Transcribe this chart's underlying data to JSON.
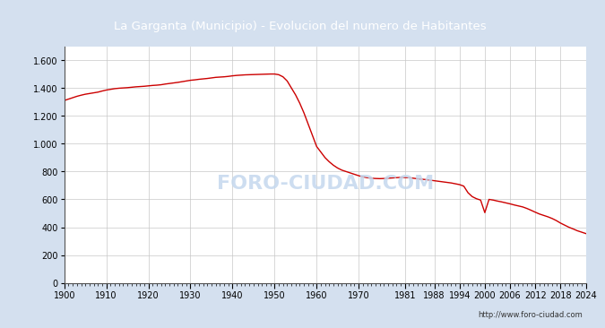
{
  "title": "La Garganta (Municipio) - Evolucion del numero de Habitantes",
  "title_bg_color": "#4179be",
  "title_text_color": "#ffffff",
  "plot_bg_color": "#ffffff",
  "outer_bg_color": "#d4e0ef",
  "line_color": "#cc0000",
  "watermark": "FORO-CIUDAD.COM",
  "url": "http://www.foro-ciudad.com",
  "xtick_labels": [
    1900,
    1910,
    1920,
    1930,
    1940,
    1950,
    1960,
    1970,
    1981,
    1988,
    1994,
    2000,
    2006,
    2012,
    2018,
    2024
  ],
  "years": [
    1900,
    1901,
    1902,
    1903,
    1904,
    1905,
    1906,
    1907,
    1908,
    1909,
    1910,
    1911,
    1912,
    1913,
    1914,
    1915,
    1916,
    1917,
    1918,
    1919,
    1920,
    1921,
    1922,
    1923,
    1924,
    1925,
    1926,
    1927,
    1928,
    1929,
    1930,
    1931,
    1932,
    1933,
    1934,
    1935,
    1936,
    1937,
    1938,
    1939,
    1940,
    1941,
    1942,
    1943,
    1944,
    1945,
    1946,
    1947,
    1948,
    1949,
    1950,
    1951,
    1952,
    1953,
    1954,
    1955,
    1956,
    1957,
    1958,
    1959,
    1960,
    1961,
    1962,
    1963,
    1964,
    1965,
    1966,
    1967,
    1968,
    1969,
    1970,
    1971,
    1972,
    1973,
    1974,
    1975,
    1976,
    1977,
    1978,
    1979,
    1980,
    1981,
    1982,
    1983,
    1984,
    1985,
    1986,
    1987,
    1988,
    1989,
    1990,
    1991,
    1992,
    1993,
    1994,
    1995,
    1996,
    1997,
    1998,
    1999,
    2000,
    2001,
    2002,
    2003,
    2004,
    2005,
    2006,
    2007,
    2008,
    2009,
    2010,
    2011,
    2012,
    2013,
    2014,
    2015,
    2016,
    2017,
    2018,
    2019,
    2020,
    2021,
    2022,
    2023,
    2024
  ],
  "population": [
    1310,
    1320,
    1330,
    1340,
    1348,
    1355,
    1360,
    1365,
    1370,
    1378,
    1385,
    1390,
    1395,
    1398,
    1400,
    1402,
    1405,
    1408,
    1410,
    1412,
    1415,
    1418,
    1420,
    1423,
    1428,
    1432,
    1436,
    1440,
    1445,
    1450,
    1455,
    1458,
    1462,
    1465,
    1468,
    1472,
    1476,
    1478,
    1480,
    1483,
    1487,
    1490,
    1492,
    1494,
    1495,
    1496,
    1497,
    1498,
    1499,
    1500,
    1500,
    1495,
    1480,
    1450,
    1400,
    1350,
    1290,
    1220,
    1140,
    1060,
    980,
    940,
    900,
    870,
    845,
    825,
    810,
    800,
    790,
    780,
    770,
    762,
    756,
    752,
    750,
    749,
    750,
    752,
    754,
    756,
    758,
    757,
    756,
    752,
    748,
    745,
    742,
    738,
    734,
    730,
    726,
    722,
    718,
    712,
    706,
    695,
    648,
    620,
    605,
    595,
    505,
    600,
    595,
    588,
    582,
    575,
    568,
    560,
    553,
    546,
    535,
    522,
    508,
    495,
    485,
    475,
    463,
    448,
    430,
    415,
    400,
    388,
    375,
    365,
    355
  ]
}
